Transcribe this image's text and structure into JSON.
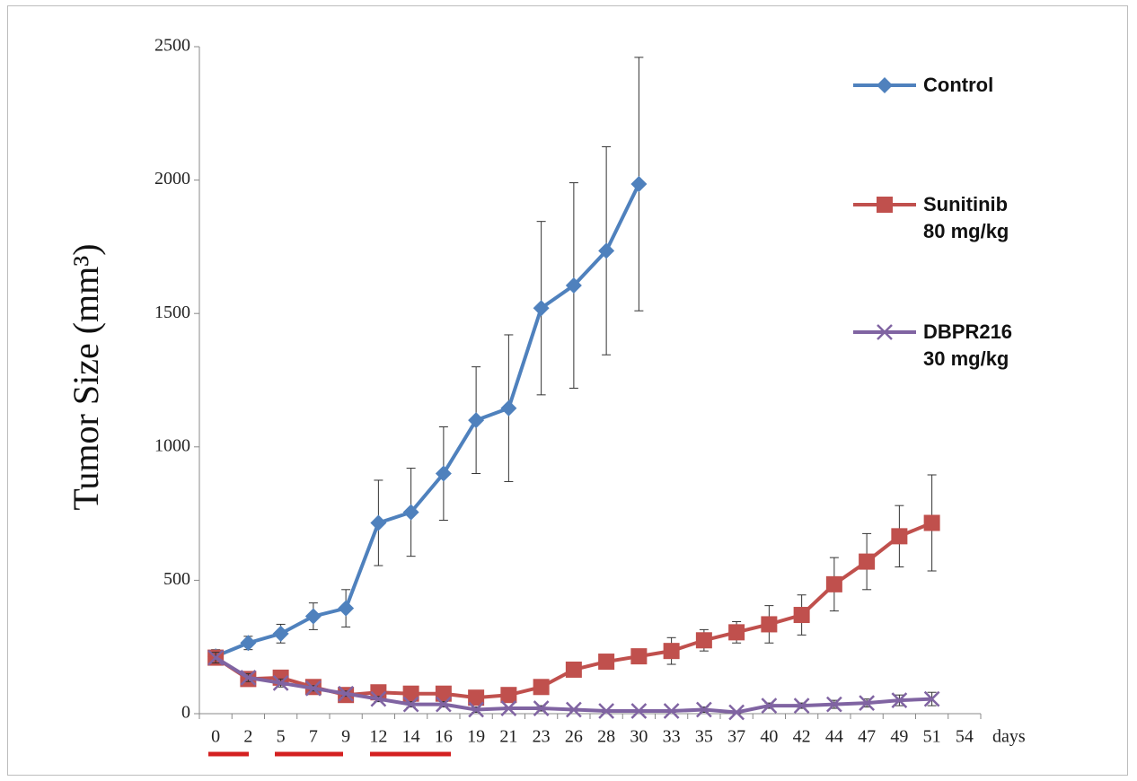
{
  "chart_data": {
    "type": "line",
    "y_label": "Tumor Size (mm³)",
    "x_label": "days",
    "categories": [
      "0",
      "2",
      "5",
      "7",
      "9",
      "12",
      "14",
      "16",
      "19",
      "21",
      "23",
      "26",
      "28",
      "30",
      "33",
      "35",
      "37",
      "40",
      "42",
      "44",
      "47",
      "49",
      "51",
      "54"
    ],
    "ylim": [
      0,
      2500
    ],
    "yticks": [
      0,
      500,
      1000,
      1500,
      2000,
      2500
    ],
    "series": [
      {
        "name": "Control",
        "color": "#4f81bd",
        "marker": "diamond",
        "values": [
          215,
          265,
          300,
          365,
          395,
          715,
          755,
          900,
          1100,
          1145,
          1520,
          1605,
          1735,
          1985,
          null,
          null,
          null,
          null,
          null,
          null,
          null,
          null,
          null,
          null
        ],
        "errors": [
          25,
          25,
          35,
          50,
          70,
          160,
          165,
          175,
          200,
          275,
          325,
          385,
          390,
          475,
          null,
          null,
          null,
          null,
          null,
          null,
          null,
          null,
          null,
          null
        ]
      },
      {
        "name": "Sunitinib\n80 mg/kg",
        "color": "#c0504d",
        "marker": "square",
        "values": [
          210,
          130,
          135,
          100,
          70,
          80,
          75,
          75,
          60,
          70,
          100,
          165,
          195,
          215,
          235,
          275,
          305,
          335,
          370,
          485,
          570,
          665,
          715,
          null
        ],
        "errors": [
          20,
          20,
          15,
          15,
          15,
          15,
          15,
          15,
          15,
          20,
          20,
          15,
          15,
          20,
          50,
          40,
          40,
          70,
          75,
          100,
          105,
          115,
          180,
          null
        ]
      },
      {
        "name": "DBPR216\n30 mg/kg",
        "color": "#8064a2",
        "marker": "x",
        "values": [
          210,
          135,
          115,
          95,
          75,
          55,
          35,
          35,
          15,
          20,
          20,
          15,
          10,
          10,
          10,
          15,
          5,
          30,
          30,
          35,
          40,
          50,
          55,
          null
        ],
        "errors": [
          20,
          15,
          15,
          10,
          10,
          10,
          10,
          10,
          10,
          5,
          10,
          5,
          5,
          5,
          5,
          10,
          5,
          10,
          10,
          15,
          15,
          20,
          25,
          null
        ]
      }
    ]
  }
}
